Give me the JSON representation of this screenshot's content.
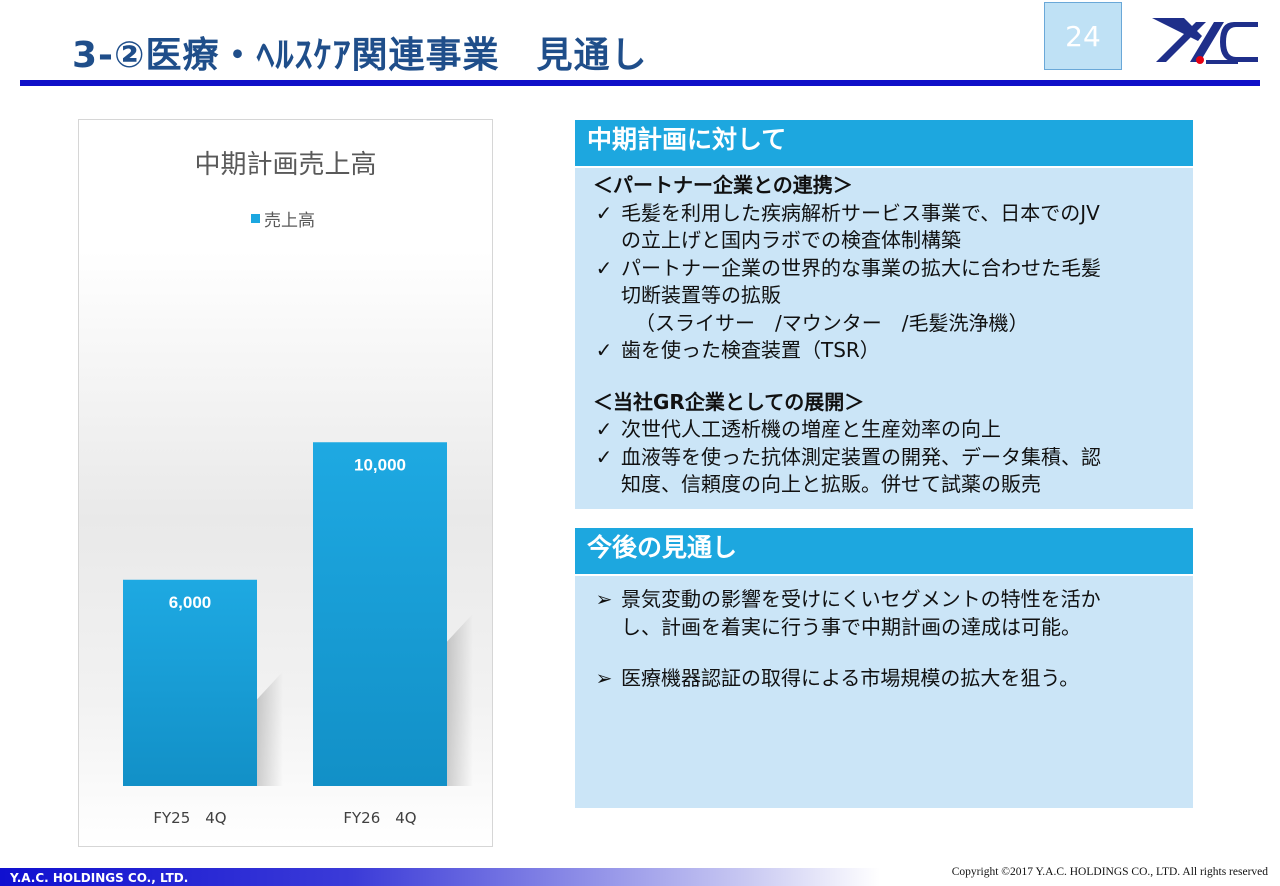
{
  "header": {
    "title": "3-②医療・ﾍﾙｽｹｱ関連事業　見通し",
    "page_number": "24",
    "logo_icon": "yac-logo-icon",
    "accent_color": "#1010c8"
  },
  "chart_data": {
    "type": "bar",
    "title": "中期計画売上高",
    "categories": [
      "FY25　4Q",
      "FY26　4Q"
    ],
    "series": [
      {
        "name": "売上高",
        "values": [
          6000,
          10000
        ],
        "labels": [
          "6,000",
          "10,000"
        ],
        "color": "#1ca7e0"
      }
    ],
    "ylim": [
      0,
      16000
    ],
    "legend_position": "top",
    "grid": false
  },
  "plan_section": {
    "header": "中期計画に対して",
    "groups": [
      {
        "heading": "＜パートナー企業との連携＞",
        "items": [
          {
            "mark": "✓",
            "lines": [
              "毛髪を利用した疾病解析サービス事業で、日本でのJV",
              "の立上げと国内ラボでの検査体制構築"
            ]
          },
          {
            "mark": "✓",
            "lines": [
              "パートナー企業の世界的な事業の拡大に合わせた毛髪",
              "切断装置等の拡販",
              "（スライサー　/マウンター　/毛髪洗浄機）"
            ]
          },
          {
            "mark": "✓",
            "lines": [
              "歯を使った検査装置（TSR）"
            ]
          }
        ]
      },
      {
        "heading": "＜当社GR企業としての展開＞",
        "items": [
          {
            "mark": "✓",
            "lines": [
              "次世代人工透析機の増産と生産効率の向上"
            ]
          },
          {
            "mark": "✓",
            "lines": [
              "血液等を使った抗体測定装置の開発、データ集積、認",
              "知度、信頼度の向上と拡販。併せて試薬の販売"
            ]
          }
        ]
      }
    ]
  },
  "outlook_section": {
    "header": "今後の見通し",
    "items": [
      {
        "mark": "➢",
        "lines": [
          "景気変動の影響を受けにくいセグメントの特性を活か",
          "し、計画を着実に行う事で中期計画の達成は可能。"
        ]
      },
      {
        "mark": "➢",
        "lines": [
          "医療機器認証の取得による市場規模の拡大を狙う。"
        ]
      }
    ]
  },
  "footer": {
    "company": "Y.A.C. HOLDINGS CO., LTD.",
    "copyright": "Copyright ©2017 Y.A.C. HOLDINGS CO., LTD.  All rights reserved"
  }
}
